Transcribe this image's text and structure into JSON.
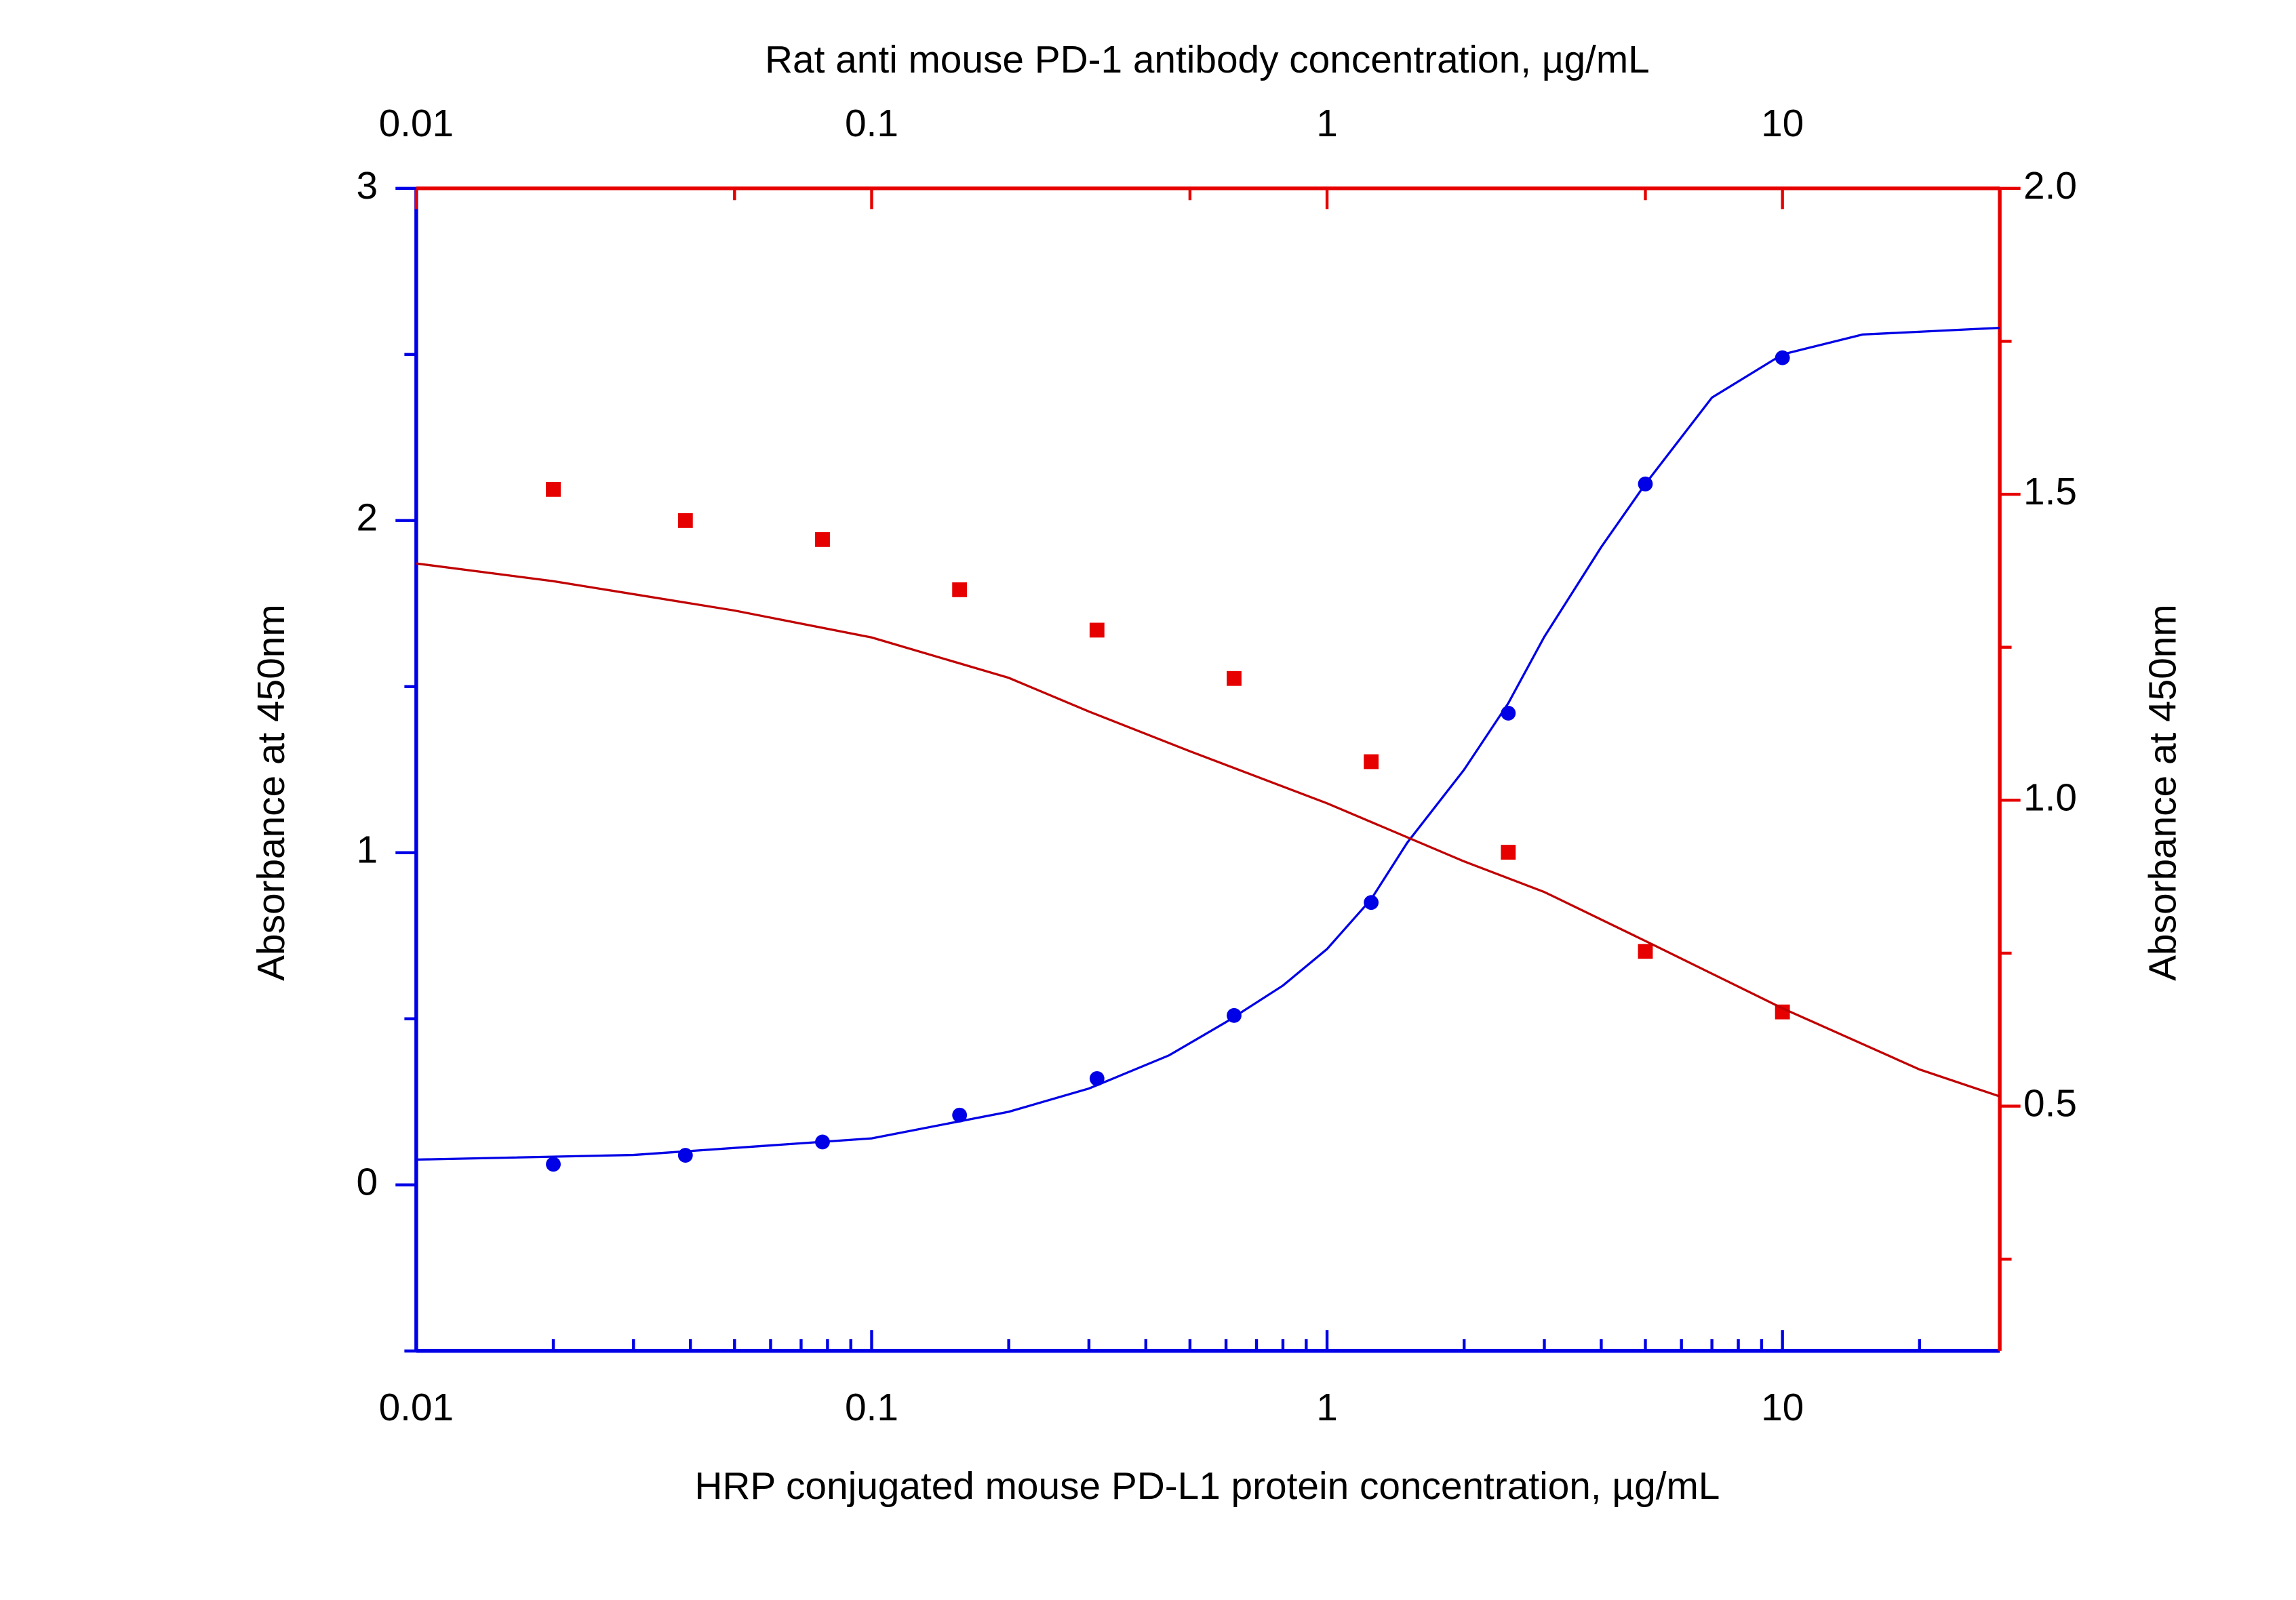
{
  "chart_data": {
    "type": "scatter",
    "x_label": "HRP conjugated mouse PD-L1 protein concentration, µg/mL",
    "x2_label": "Rat anti mouse PD-1 antibody concentration, µg/mL",
    "y_label": "Absorbance at 450nm",
    "y2_label": "Absorbance at 450nm",
    "xscale": "log",
    "xlim": [
      0.01,
      30
    ],
    "xticks": [
      0.01,
      0.1,
      1,
      10
    ],
    "xminorticks": [
      0.02,
      0.03,
      0.04,
      0.05,
      0.06,
      0.07,
      0.08,
      0.09,
      0.2,
      0.3,
      0.4,
      0.5,
      0.6,
      0.7,
      0.8,
      0.9,
      2,
      3,
      4,
      5,
      6,
      7,
      8,
      9,
      20
    ],
    "x2lim": [
      0.01,
      30
    ],
    "x2ticks": [
      0.01,
      0.1,
      1,
      10
    ],
    "x2minorticks": [
      0.05,
      0.5,
      5
    ],
    "ylim": [
      -0.5,
      3
    ],
    "yticks": [
      0,
      1,
      2,
      3
    ],
    "yminorticks": [
      -0.5,
      0.5,
      1.5,
      2.5
    ],
    "y2lim": [
      0.1,
      2.0
    ],
    "y2ticks": [
      {
        "value": 0.5,
        "label": "0.5"
      },
      {
        "value": 1,
        "label": "1.0"
      },
      {
        "value": 1.5,
        "label": "1.5"
      },
      {
        "value": 2,
        "label": "2.0"
      }
    ],
    "y2minorticks": [
      0.25,
      0.75,
      1.25,
      1.75
    ],
    "series": [
      {
        "color": "#0000e6",
        "marker": "circle",
        "axis": "y",
        "x": [
          0.02,
          0.039,
          0.078,
          0.156,
          0.3125,
          0.625,
          1.25,
          2.5,
          5,
          10
        ],
        "values": [
          0.062,
          0.089,
          0.129,
          0.21,
          0.32,
          0.51,
          0.85,
          1.42,
          2.11,
          2.49
        ]
      },
      {
        "color": "#0000e6",
        "marker": "line",
        "axis": "y",
        "x": [
          0.01,
          0.03,
          0.1,
          0.2,
          0.3,
          0.45,
          0.6,
          0.8,
          1,
          1.25,
          1.5,
          2,
          2.5,
          3,
          4,
          5,
          7,
          10,
          15,
          30
        ],
        "values": [
          0.076,
          0.09,
          0.14,
          0.22,
          0.29,
          0.39,
          0.49,
          0.6,
          0.71,
          0.86,
          1.03,
          1.25,
          1.45,
          1.65,
          1.92,
          2.11,
          2.37,
          2.5,
          2.56,
          2.58
        ]
      },
      {
        "color": "#e60000",
        "marker": "square",
        "axis": "y2",
        "x": [
          0.02,
          0.039,
          0.078,
          0.156,
          0.3125,
          0.625,
          1.25,
          2.5,
          5,
          10
        ],
        "values": [
          1.508,
          1.457,
          1.426,
          1.344,
          1.278,
          1.199,
          1.063,
          0.915,
          0.753,
          0.654
        ]
      },
      {
        "color": "#c00000",
        "marker": "line",
        "axis": "y2",
        "x": [
          0.01,
          0.02,
          0.05,
          0.1,
          0.2,
          0.3,
          0.5,
          1,
          2,
          3,
          5,
          10,
          20,
          30
        ],
        "values": [
          1.387,
          1.358,
          1.31,
          1.266,
          1.2,
          1.145,
          1.08,
          0.995,
          0.9,
          0.85,
          0.77,
          0.66,
          0.56,
          0.516
        ]
      }
    ]
  }
}
